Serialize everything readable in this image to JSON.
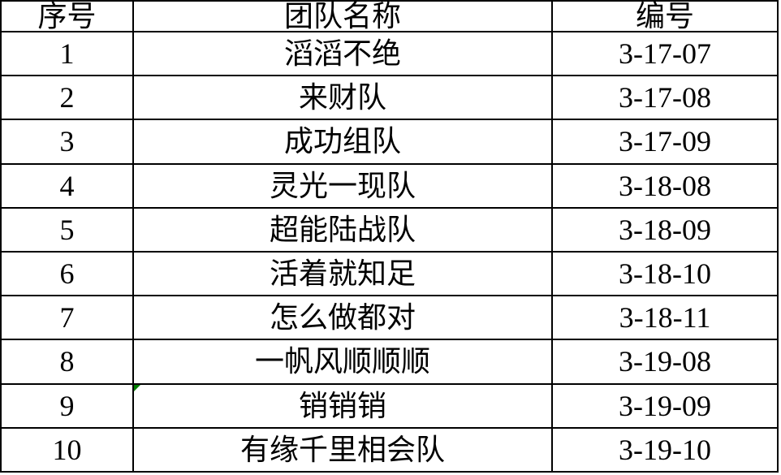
{
  "table": {
    "columns": {
      "index": "序号",
      "team": "团队名称",
      "code": "编号"
    },
    "rows": [
      {
        "index": "1",
        "team": "滔滔不绝",
        "code": "3-17-07"
      },
      {
        "index": "2",
        "team": "来财队",
        "code": "3-17-08"
      },
      {
        "index": "3",
        "team": "成功组队",
        "code": "3-17-09"
      },
      {
        "index": "4",
        "team": "灵光一现队",
        "code": "3-18-08"
      },
      {
        "index": "5",
        "team": "超能陆战队",
        "code": "3-18-09"
      },
      {
        "index": "6",
        "team": "活着就知足",
        "code": "3-18-10"
      },
      {
        "index": "7",
        "team": "怎么做都对",
        "code": "3-18-11"
      },
      {
        "index": "8",
        "team": "一帆风顺顺顺",
        "code": "3-19-08"
      },
      {
        "index": "9",
        "team": "销销销",
        "code": "3-19-09"
      },
      {
        "index": "10",
        "team": "有缘千里相会队",
        "code": "3-19-10"
      }
    ],
    "error_indicator": {
      "row_index": "9",
      "column": "team",
      "color": "#008000"
    }
  },
  "colors": {
    "background": "#ffffff",
    "border": "#000000",
    "text": "#000000"
  }
}
